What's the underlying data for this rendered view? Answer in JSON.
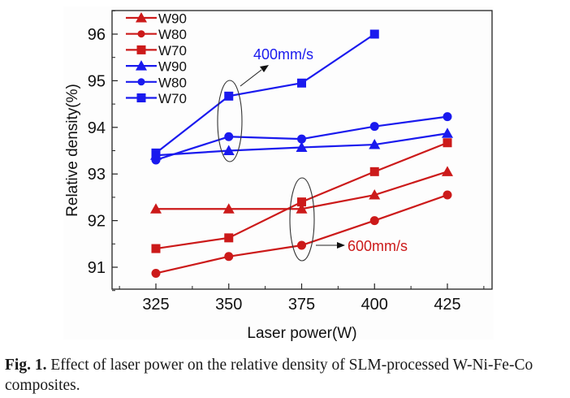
{
  "chart_data": {
    "type": "line",
    "title": "",
    "xlabel": "Laser power(W)",
    "ylabel": "Relative density(%)",
    "xlim": [
      315,
      435
    ],
    "ylim": [
      90.5,
      96.5
    ],
    "x": [
      325,
      350,
      375,
      400,
      425
    ],
    "x_ticks": [
      "325",
      "350",
      "375",
      "400",
      "425"
    ],
    "y_ticks": [
      "91",
      "92",
      "93",
      "94",
      "95",
      "96"
    ],
    "grid": false,
    "legend_position": "top-left",
    "series": [
      {
        "name": "W90",
        "group": "600mm/s",
        "color": "#cc1a1a",
        "marker": "triangle",
        "values": [
          92.25,
          92.25,
          92.25,
          92.55,
          93.05
        ]
      },
      {
        "name": "W80",
        "group": "600mm/s",
        "color": "#cc1a1a",
        "marker": "circle",
        "values": [
          90.87,
          91.23,
          91.47,
          92.0,
          92.55
        ]
      },
      {
        "name": "W70",
        "group": "600mm/s",
        "color": "#cc1a1a",
        "marker": "square",
        "values": [
          91.4,
          91.63,
          92.4,
          93.05,
          93.67
        ]
      },
      {
        "name": "W90",
        "group": "400mm/s",
        "color": "#1a1aee",
        "marker": "triangle",
        "values": [
          93.4,
          93.5,
          93.57,
          93.63,
          93.87
        ]
      },
      {
        "name": "W80",
        "group": "400mm/s",
        "color": "#1a1aee",
        "marker": "circle",
        "values": [
          93.3,
          93.8,
          93.75,
          94.02,
          94.23
        ]
      },
      {
        "name": "W70",
        "group": "400mm/s",
        "color": "#1a1aee",
        "marker": "square",
        "values": [
          93.45,
          94.67,
          94.95,
          96.0,
          null
        ]
      }
    ],
    "annotations": [
      {
        "text": "400mm/s",
        "color": "#1a1aee",
        "points_to_x": 350
      },
      {
        "text": "600mm/s",
        "color": "#cc1a1a",
        "points_to_x": 375
      }
    ]
  },
  "caption": {
    "label": "Fig. 1.",
    "text": " Effect of laser power on the relative density of SLM-processed W-Ni-Fe-Co composites."
  }
}
